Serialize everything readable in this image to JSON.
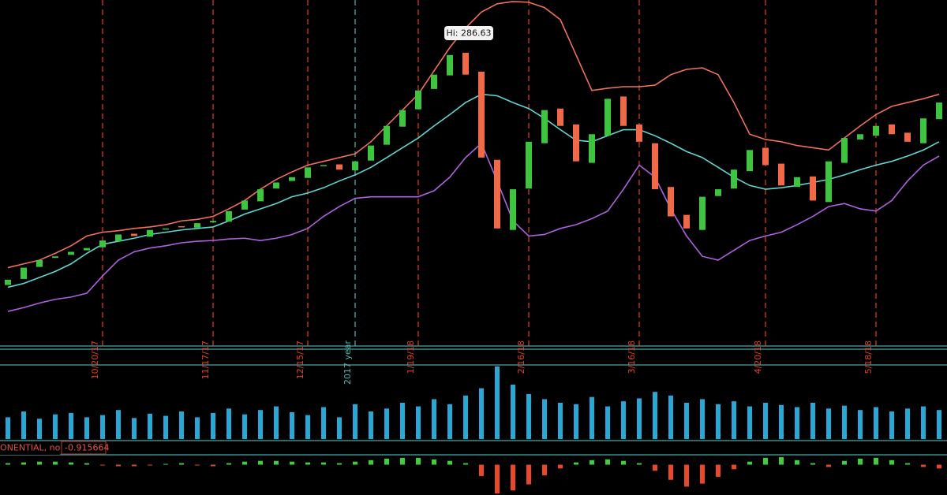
{
  "chart_data": [
    {
      "type": "candlestick",
      "annotation": "Hi: 286.63",
      "categories": [
        null,
        null,
        null,
        null,
        null,
        null,
        "10/20/17",
        null,
        null,
        null,
        null,
        null,
        null,
        "11/17/17",
        null,
        null,
        null,
        null,
        null,
        "12/15/17",
        null,
        null,
        "2017 year",
        null,
        null,
        null,
        "1/19/18",
        null,
        null,
        null,
        null,
        null,
        null,
        "2/16/18",
        null,
        null,
        null,
        null,
        null,
        null,
        "3/16/18",
        null,
        null,
        null,
        null,
        null,
        null,
        null,
        "4/20/18",
        null,
        null,
        null,
        null,
        null,
        null,
        "5/18/18",
        null,
        null,
        null,
        null
      ],
      "open": [
        255.2,
        256.0,
        257.6,
        258.8,
        259.2,
        259.8,
        260.2,
        261.0,
        262.0,
        261.6,
        262.6,
        263.0,
        262.8,
        263.5,
        263.6,
        265.2,
        266.3,
        268.0,
        269.0,
        269.4,
        271.0,
        271.2,
        270.4,
        271.7,
        273.8,
        276.2,
        278.5,
        281.2,
        283.0,
        286.0,
        283.5,
        271.8,
        262.5,
        268.0,
        274.0,
        278.6,
        276.5,
        271.4,
        275.0,
        280.2,
        276.5,
        274.0,
        268.2,
        264.5,
        262.5,
        267.0,
        268.0,
        270.3,
        273.4,
        271.3,
        268.2,
        269.6,
        266.2,
        271.4,
        274.5,
        275.0,
        276.5,
        275.4,
        274.0,
        277.2
      ],
      "close": [
        255.9,
        257.5,
        258.5,
        259.0,
        259.6,
        260.1,
        261.1,
        261.9,
        261.7,
        262.5,
        262.7,
        262.9,
        263.4,
        263.7,
        265.0,
        266.4,
        267.9,
        268.8,
        269.5,
        270.8,
        271.1,
        270.5,
        271.6,
        273.7,
        276.3,
        278.4,
        281.0,
        283.1,
        285.7,
        283.1,
        272.1,
        262.7,
        267.9,
        274.2,
        278.4,
        276.3,
        271.6,
        275.2,
        279.9,
        276.3,
        274.2,
        267.9,
        264.3,
        262.7,
        266.9,
        267.9,
        270.5,
        273.1,
        271.1,
        268.4,
        269.5,
        266.4,
        271.6,
        274.7,
        275.2,
        276.3,
        275.2,
        274.2,
        277.3,
        279.4
      ],
      "upper_band": [
        257.5,
        258.0,
        258.5,
        259.4,
        260.4,
        261.7,
        262.2,
        262.4,
        262.7,
        262.9,
        263.2,
        263.7,
        263.9,
        264.3,
        265.3,
        266.4,
        267.9,
        269.2,
        270.2,
        271.1,
        271.6,
        272.1,
        272.6,
        274.2,
        276.3,
        278.4,
        280.5,
        283.6,
        286.7,
        289.3,
        291.4,
        292.5,
        292.8,
        292.7,
        292.0,
        290.4,
        285.7,
        281.0,
        281.3,
        281.5,
        281.5,
        281.7,
        283.1,
        283.8,
        284.0,
        283.1,
        279.4,
        275.2,
        274.5,
        274.2,
        273.7,
        273.4,
        273.1,
        274.7,
        276.3,
        277.8,
        278.9,
        279.4,
        279.9,
        280.5
      ],
      "middle_band": [
        254.9,
        255.4,
        256.2,
        257.0,
        258.0,
        259.4,
        260.6,
        261.0,
        261.4,
        261.9,
        262.2,
        262.5,
        262.7,
        262.9,
        263.7,
        264.6,
        265.3,
        266.0,
        266.9,
        267.4,
        268.1,
        269.0,
        269.8,
        270.8,
        272.1,
        273.4,
        274.7,
        276.3,
        277.8,
        279.4,
        280.5,
        280.3,
        279.4,
        278.6,
        277.3,
        275.8,
        274.4,
        274.2,
        275.0,
        275.8,
        275.8,
        275.0,
        274.0,
        272.9,
        272.1,
        270.8,
        269.5,
        268.4,
        267.9,
        268.1,
        268.4,
        268.8,
        269.2,
        269.8,
        270.5,
        271.1,
        271.6,
        272.3,
        273.1,
        274.2
      ],
      "lower_band": [
        251.7,
        252.2,
        252.8,
        253.3,
        253.6,
        254.1,
        256.4,
        258.5,
        259.6,
        260.1,
        260.4,
        260.8,
        261.0,
        261.1,
        261.3,
        261.4,
        261.1,
        261.4,
        261.9,
        262.7,
        264.3,
        265.6,
        266.7,
        266.9,
        266.9,
        266.9,
        266.9,
        267.7,
        269.5,
        272.1,
        274.0,
        269.0,
        263.7,
        261.7,
        261.9,
        262.7,
        263.2,
        264.0,
        265.0,
        267.9,
        271.1,
        269.5,
        265.3,
        261.7,
        259.0,
        258.5,
        259.8,
        261.1,
        261.7,
        262.2,
        263.2,
        264.3,
        265.6,
        266.0,
        265.3,
        265.0,
        266.4,
        269.0,
        271.1,
        272.3
      ],
      "ylim": [
        247,
        293
      ],
      "up_color": "#3ec43e",
      "down_color": "#f06a4a",
      "upper_band_color": "#f0705a",
      "middle_band_color": "#5fd6d0",
      "lower_band_color": "#b060e0",
      "category_line_color": "#e2401c",
      "highlight_category": "2017 year",
      "highlight_color": "#4db8b0"
    },
    {
      "type": "bar",
      "values": [
        30,
        38,
        28,
        34,
        36,
        30,
        33,
        40,
        29,
        35,
        32,
        38,
        30,
        36,
        42,
        34,
        40,
        45,
        37,
        33,
        44,
        30,
        48,
        38,
        42,
        50,
        45,
        55,
        48,
        60,
        70,
        100,
        75,
        62,
        55,
        50,
        48,
        58,
        45,
        52,
        56,
        65,
        60,
        50,
        55,
        48,
        52,
        45,
        50,
        47,
        44,
        50,
        42,
        46,
        40,
        44,
        38,
        42,
        45,
        40
      ],
      "ylim": [
        0,
        100
      ],
      "color": "#29a8d8"
    },
    {
      "type": "histogram-signed",
      "study_label": "ONENTIAL, no)",
      "study_value": "-0.915664",
      "values": [
        0.2,
        0.3,
        0.4,
        0.4,
        0.3,
        0.2,
        -0.1,
        -0.2,
        -0.2,
        -0.1,
        0.1,
        0.2,
        -0.1,
        -0.2,
        0.2,
        0.4,
        0.5,
        0.5,
        0.4,
        0.3,
        0.3,
        0.2,
        0.4,
        0.6,
        0.8,
        0.9,
        0.9,
        0.7,
        0.5,
        0.2,
        -1.5,
        -3.8,
        -3.4,
        -2.6,
        -1.4,
        -0.5,
        0.3,
        0.6,
        0.7,
        0.5,
        0.2,
        -0.8,
        -2.0,
        -2.9,
        -2.5,
        -1.6,
        -0.6,
        0.4,
        0.9,
        1.0,
        0.6,
        0.2,
        -0.3,
        0.5,
        0.8,
        0.9,
        0.6,
        0.2,
        -0.3,
        -0.5
      ],
      "ylim": [
        -4,
        1.2
      ],
      "positive_color": "#3fcf3a",
      "negative_color": "#e8472a"
    }
  ]
}
